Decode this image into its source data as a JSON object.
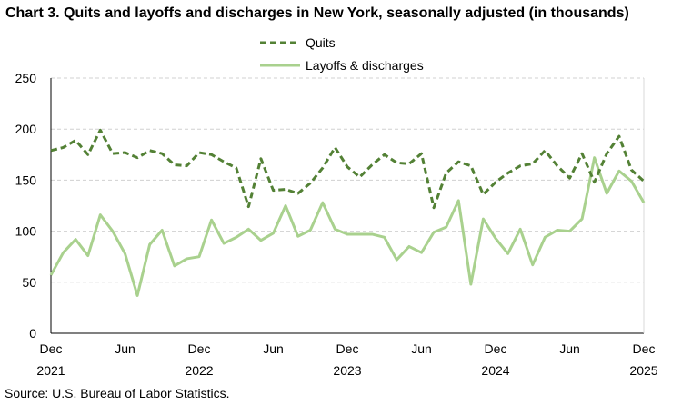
{
  "chart_data": {
    "type": "line",
    "title": "Chart 3. Quits and layoffs and discharges in New York, seasonally adjusted (in thousands)",
    "source": "Source: U.S. Bureau of Labor Statistics.",
    "ylim": [
      0,
      250
    ],
    "yticks": [
      "0",
      "50",
      "100",
      "150",
      "200",
      "250"
    ],
    "xticks": [
      {
        "month": "Dec",
        "year": "2021"
      },
      {
        "month": "Jun",
        "year": ""
      },
      {
        "month": "Dec",
        "year": "2022"
      },
      {
        "month": "Jun",
        "year": ""
      },
      {
        "month": "Dec",
        "year": "2023"
      },
      {
        "month": "Jun",
        "year": ""
      },
      {
        "month": "Dec",
        "year": "2024"
      },
      {
        "month": "Jun",
        "year": ""
      },
      {
        "month": "Dec",
        "year": "2025"
      }
    ],
    "x_range": [
      "Dec 2021",
      "Dec 2025"
    ],
    "grid": true,
    "legend": "top-center",
    "series": [
      {
        "name": "Quits",
        "color": "#538135",
        "style": "dashed",
        "values": [
          179,
          182,
          189,
          175,
          199,
          176,
          177,
          172,
          179,
          176,
          165,
          164,
          177,
          175,
          168,
          162,
          124,
          171,
          140,
          141,
          137,
          147,
          162,
          182,
          163,
          153,
          165,
          175,
          167,
          166,
          176,
          123,
          157,
          168,
          164,
          136,
          148,
          157,
          164,
          166,
          179,
          164,
          152,
          176,
          148,
          176,
          193,
          160,
          149
        ]
      },
      {
        "name": "Layoffs & discharges",
        "color": "#a9d18e",
        "style": "solid",
        "values": [
          57,
          79,
          92,
          76,
          116,
          100,
          78,
          37,
          87,
          101,
          66,
          73,
          75,
          111,
          88,
          94,
          102,
          91,
          98,
          125,
          95,
          101,
          128,
          102,
          97,
          97,
          97,
          94,
          72,
          85,
          79,
          99,
          104,
          130,
          48,
          112,
          93,
          78,
          102,
          67,
          94,
          101,
          100,
          112,
          172,
          137,
          159,
          149,
          128
        ]
      }
    ]
  }
}
